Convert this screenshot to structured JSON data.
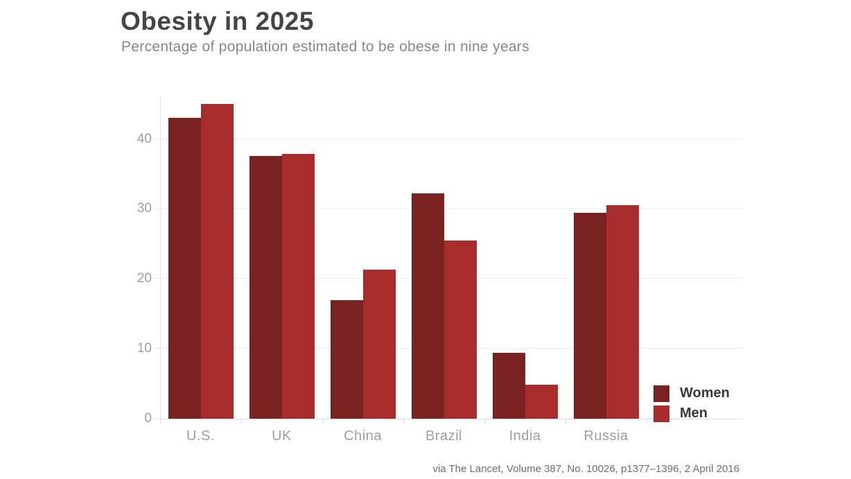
{
  "header": {
    "title": "Obesity in 2025",
    "subtitle": "Percentage of population estimated to be obese in nine years"
  },
  "footer": {
    "source": "via The Lancet, Volume 387, No. 10026, p1377–1396, 2 April 2016"
  },
  "chart_data": {
    "type": "bar",
    "title": "Obesity in 2025",
    "subtitle": "Percentage of population estimated to be obese in nine years",
    "categories": [
      "U.S.",
      "UK",
      "China",
      "Brazil",
      "India",
      "Russia"
    ],
    "series": [
      {
        "name": "Women",
        "color": "#7a2221",
        "values": [
          43.0,
          37.6,
          17.0,
          32.2,
          9.4,
          29.4
        ]
      },
      {
        "name": "Men",
        "color": "#a72c2b",
        "values": [
          45.0,
          37.9,
          21.3,
          25.5,
          4.9,
          30.5
        ]
      }
    ],
    "xlabel": "",
    "ylabel": "",
    "ylim": [
      0,
      46
    ],
    "yticks": [
      0,
      10,
      20,
      30,
      40
    ],
    "grid": true,
    "gridline_color": "#ededed",
    "axis_label_color": "#9e9e9e",
    "legend_position": "bottom-right",
    "source": "via The Lancet, Volume 387, No. 10026, p1377–1396, 2 April 2016"
  }
}
